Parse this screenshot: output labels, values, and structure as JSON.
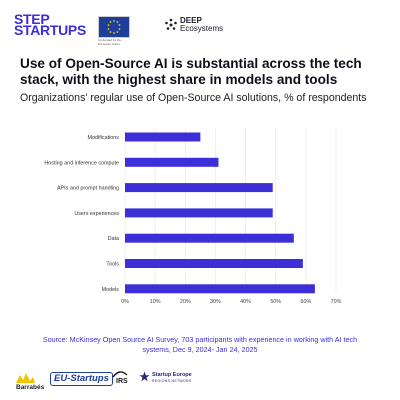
{
  "header": {
    "step_logo_line1": "STEP",
    "step_logo_line2": "STARTUPS",
    "eu_caption": "Co-funded by the European Union",
    "deep_logo_line1": "DEEP",
    "deep_logo_line2": "Ecosystems"
  },
  "title": "Use of Open-Source AI is substantial across the tech stack, with the highest share in models and tools",
  "subtitle": "Organizations' regular use of Open-Source AI solutions, % of respondents",
  "source": "Source: McKinsey Open Source AI Survey, 703 participants with experience in working with AI tech systems, Dec 9, 2024- Jan 24, 2025",
  "footer": {
    "barrabes": "Barrabés",
    "eustartups": "EU-Startups",
    "irs": "IRS",
    "startup_europe_line1": "Startup Europe",
    "startup_europe_line2": "REGIONS NETWORK"
  },
  "colors": {
    "bar": "#3c2fd8",
    "accent": "#3c2fd8",
    "gridline": "#e6e6ee"
  },
  "chart_data": {
    "type": "bar",
    "orientation": "horizontal",
    "categories": [
      "Modifications",
      "Hosting and inference compute",
      "APIs and prompt handling",
      "Users experiences",
      "Data",
      "Tools",
      "Models"
    ],
    "values": [
      25,
      31,
      49,
      49,
      56,
      59,
      63
    ],
    "xlim": [
      0,
      70
    ],
    "x_ticks": [
      "0%",
      "10%",
      "20%",
      "30%",
      "40%",
      "50%",
      "60%",
      "70%"
    ],
    "grid": true
  }
}
